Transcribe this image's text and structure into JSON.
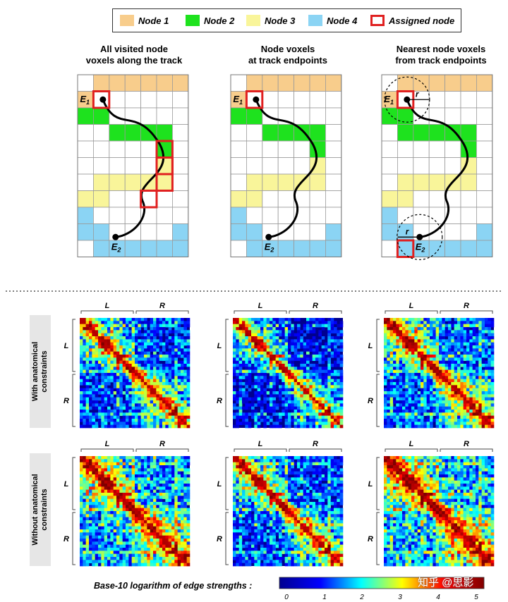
{
  "legend": {
    "items": [
      {
        "label": "Node 1",
        "color": "#f8cd8c"
      },
      {
        "label": "Node 2",
        "color": "#1ee21e"
      },
      {
        "label": "Node 3",
        "color": "#f9f59a"
      },
      {
        "label": "Node 4",
        "color": "#8bd4f4"
      },
      {
        "label": "Assigned node",
        "color": "#e02020"
      }
    ]
  },
  "panels": [
    {
      "title_line1": "All visited node",
      "title_line2": "voxels along the track"
    },
    {
      "title_line1": "Node voxels",
      "title_line2": "at track endpoints"
    },
    {
      "title_line1": "Nearest node voxels",
      "title_line2": "from track endpoints"
    }
  ],
  "endpoint_labels": {
    "e1": "E",
    "e1_sub": "1",
    "e2": "E",
    "e2_sub": "2",
    "radius": "r"
  },
  "rows": [
    {
      "label_line1": "With anatomical",
      "label_line2": "constraints"
    },
    {
      "label_line1": "Without anatomical",
      "label_line2": "constraints"
    }
  ],
  "matrix_axes": {
    "left": "L",
    "right": "R"
  },
  "colorbar": {
    "label": "Base-10 logarithm of edge strengths :",
    "ticks": [
      "0",
      "1",
      "2",
      "3",
      "4",
      "5"
    ],
    "colors": [
      "#00008f",
      "#0000ff",
      "#00ffff",
      "#ffff00",
      "#ff0000",
      "#800000"
    ]
  },
  "watermark": "知乎 @思影"
}
